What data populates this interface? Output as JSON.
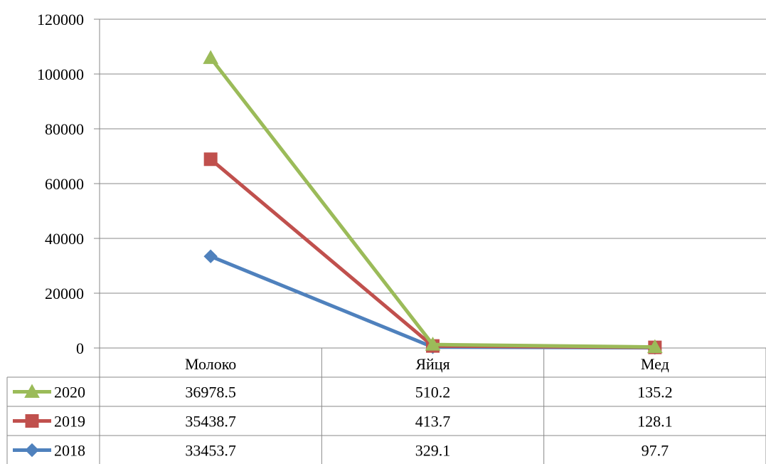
{
  "chart_data": {
    "type": "line",
    "title": "",
    "xlabel": "",
    "ylabel": "",
    "categories": [
      "Молоко",
      "Яйця",
      "Мед"
    ],
    "ylim": [
      0,
      120000
    ],
    "yticks": [
      "0",
      "20000",
      "40000",
      "60000",
      "80000",
      "100000",
      "120000"
    ],
    "grid": true,
    "legend": "data-table-left",
    "series": [
      {
        "name": "2020",
        "color": "#9BBB59",
        "marker": "triangle",
        "values": [
          105870.9,
          1253.0,
          361.0
        ],
        "table_values": [
          "36978.5",
          "510.2",
          "135.2"
        ]
      },
      {
        "name": "2019",
        "color": "#C0504D",
        "marker": "square",
        "values": [
          68892.4,
          742.8,
          225.8
        ],
        "table_values": [
          "35438.7",
          "413.7",
          "128.1"
        ]
      },
      {
        "name": "2018",
        "color": "#4F81BD",
        "marker": "diamond",
        "values": [
          33453.7,
          329.1,
          97.7
        ],
        "table_values": [
          "33453.7",
          "329.1",
          "97.7"
        ]
      }
    ]
  }
}
